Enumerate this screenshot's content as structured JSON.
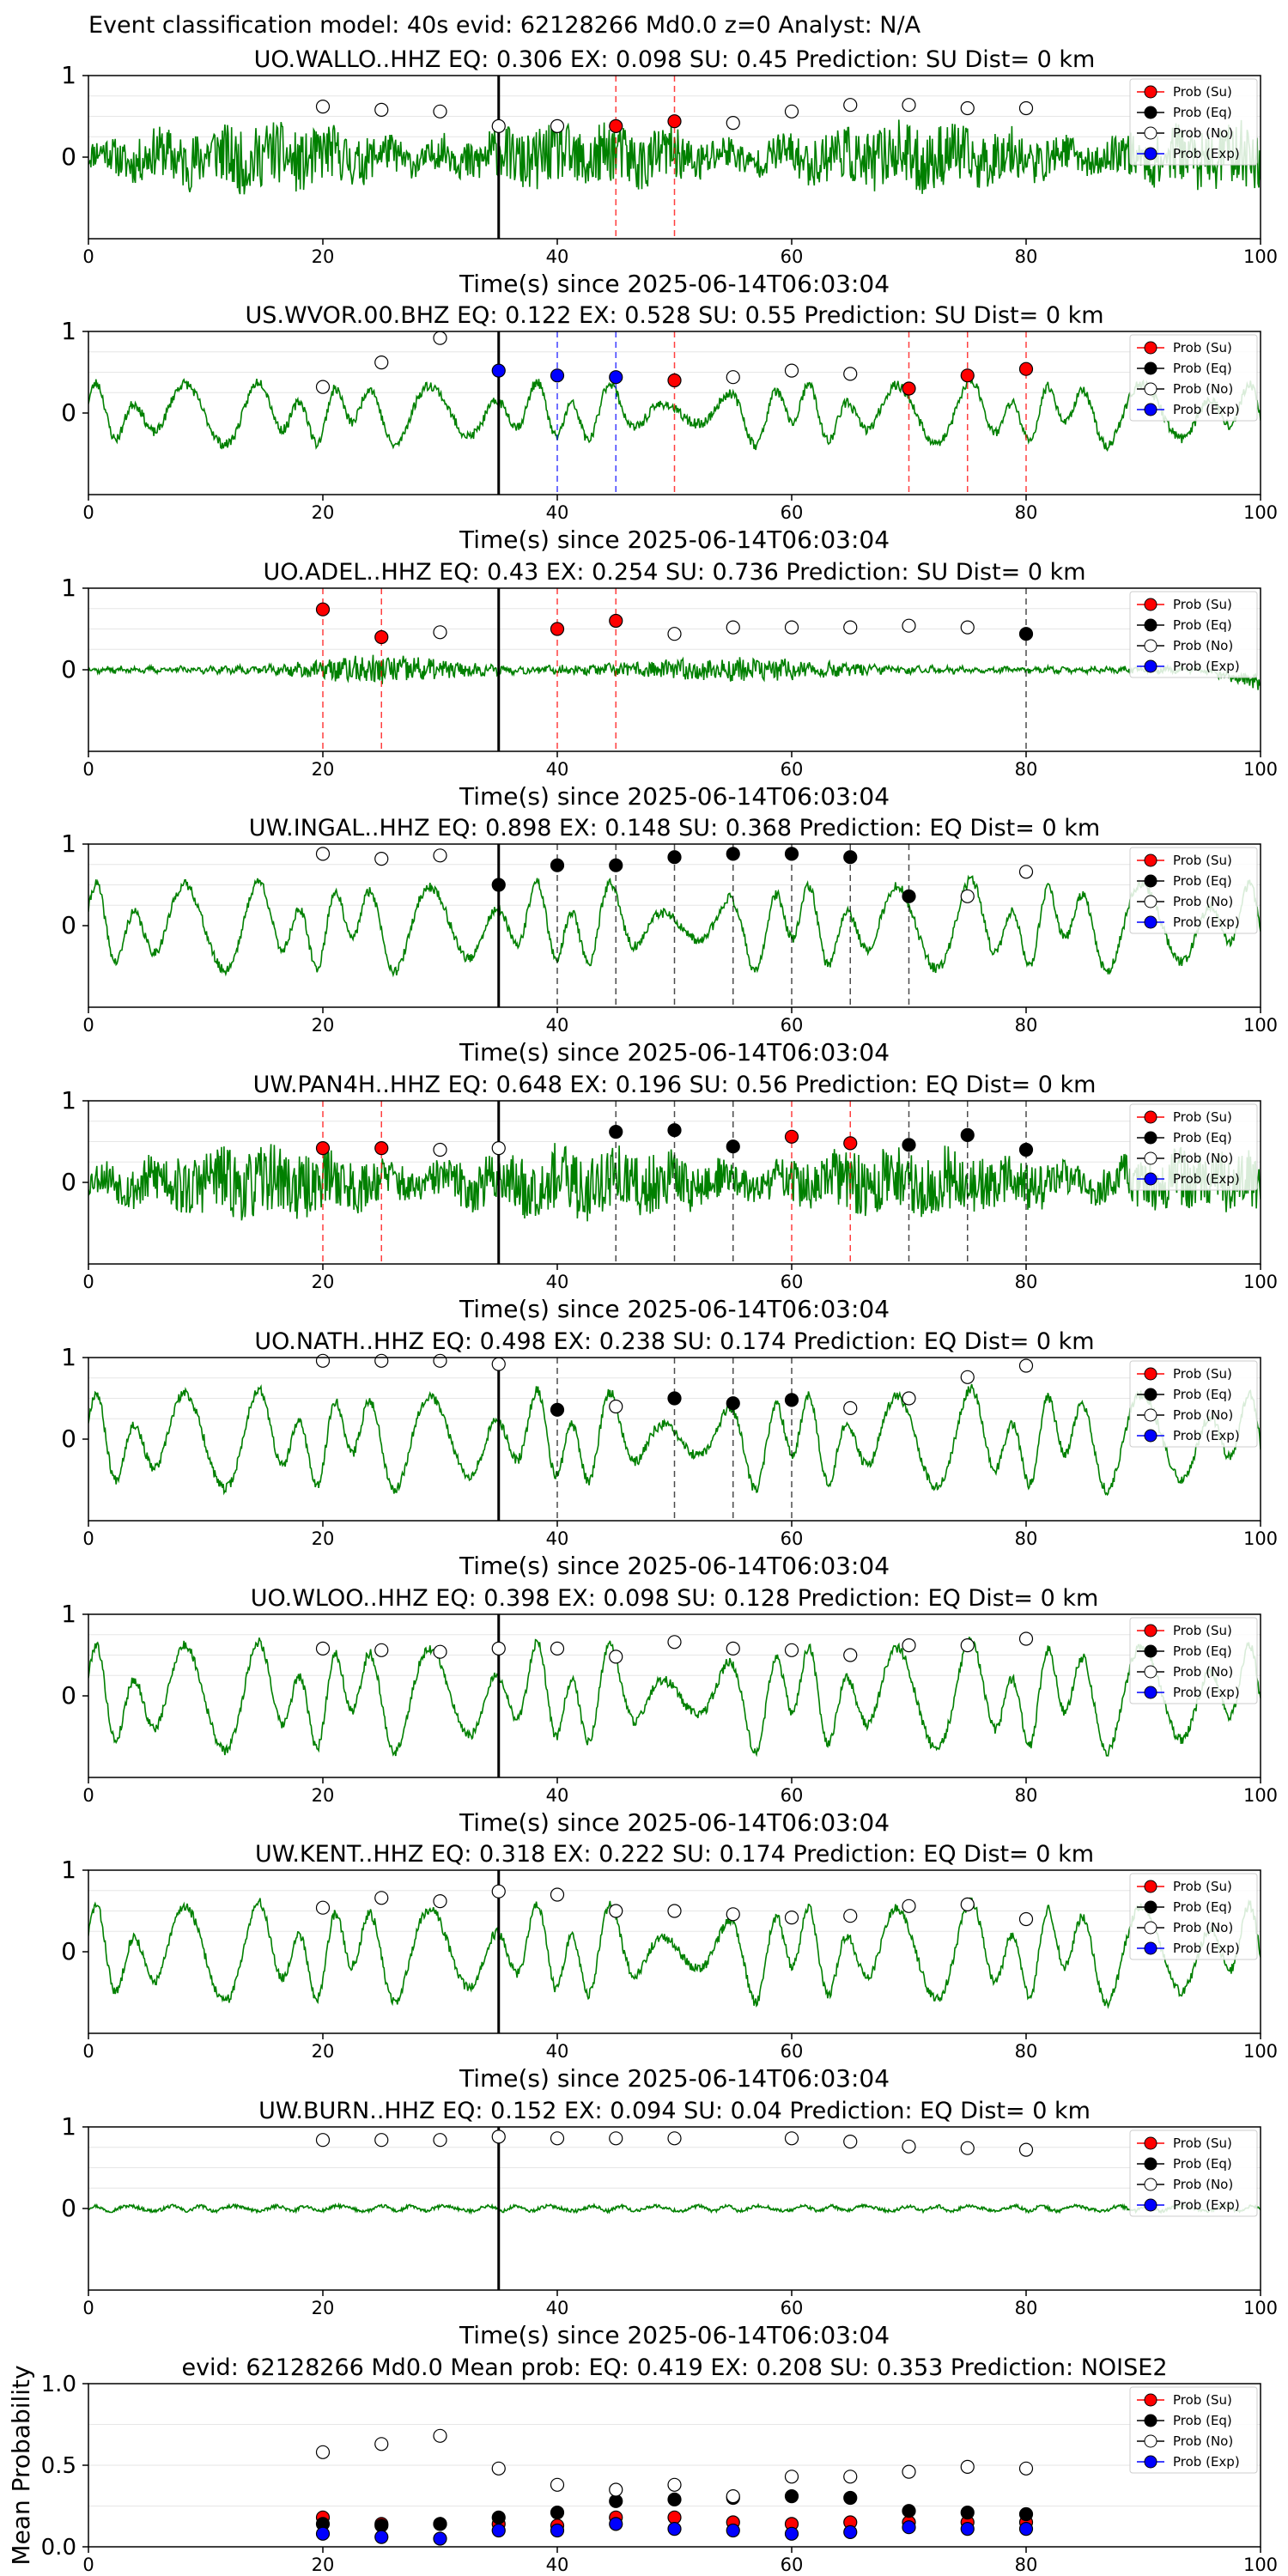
{
  "suptitle": "Event classification model: 40s evid: 62128266 Md0.0 z=0 Analyst: N/A",
  "legend_labels": [
    "Prob (Su)",
    "Prob (Eq)",
    "Prob (No)",
    "Prob (Exp)"
  ],
  "colors": {
    "waveform": "#008000",
    "su": "#ff0000",
    "eq": "#000000",
    "no": "#ffffff",
    "exp": "#0000ff",
    "su_line": "#ff0000",
    "eq_line": "#000000",
    "exp_line": "#0000ff"
  },
  "chart_data": [
    {
      "type": "scatter",
      "title": "UO.WALLO..HHZ   EQ: 0.306  EX: 0.098  SU: 0.45   Prediction: SU    Dist= 0 km",
      "xlabel": "Time(s) since 2025-06-14T06:03:04",
      "xlim": [
        0,
        100
      ],
      "x_ticks": [
        "0",
        "20",
        "40",
        "60",
        "80",
        "100"
      ],
      "y_ticks": [
        "0",
        "1"
      ],
      "ylim": [
        -1,
        1
      ],
      "waveform": {
        "amplitude": 0.28,
        "style": "noisy",
        "seed": 11
      },
      "vline": 35,
      "legend": "top-right",
      "points": [
        {
          "x": 20,
          "y": 0.62,
          "c": "no"
        },
        {
          "x": 25,
          "y": 0.58,
          "c": "no"
        },
        {
          "x": 30,
          "y": 0.56,
          "c": "no"
        },
        {
          "x": 35,
          "y": 0.38,
          "c": "no"
        },
        {
          "x": 40,
          "y": 0.38,
          "c": "no"
        },
        {
          "x": 45,
          "y": 0.38,
          "c": "su"
        },
        {
          "x": 50,
          "y": 0.44,
          "c": "su"
        },
        {
          "x": 55,
          "y": 0.42,
          "c": "no"
        },
        {
          "x": 60,
          "y": 0.56,
          "c": "no"
        },
        {
          "x": 65,
          "y": 0.64,
          "c": "no"
        },
        {
          "x": 70,
          "y": 0.64,
          "c": "no"
        },
        {
          "x": 75,
          "y": 0.6,
          "c": "no"
        },
        {
          "x": 80,
          "y": 0.6,
          "c": "no"
        }
      ],
      "marker_lines": [
        {
          "x": 45,
          "c": "su"
        },
        {
          "x": 50,
          "c": "su"
        }
      ]
    },
    {
      "type": "scatter",
      "title": "US.WVOR.00.BHZ   EQ: 0.122  EX: 0.528  SU: 0.55   Prediction: SU    Dist= 0 km",
      "xlabel": "Time(s) since 2025-06-14T06:03:04",
      "xlim": [
        0,
        100
      ],
      "x_ticks": [
        "0",
        "20",
        "40",
        "60",
        "80",
        "100"
      ],
      "y_ticks": [
        "0",
        "1"
      ],
      "ylim": [
        -1,
        1
      ],
      "waveform": {
        "amplitude": 0.32,
        "style": "wavy",
        "seed": 23
      },
      "vline": 35,
      "legend": "top-right",
      "points": [
        {
          "x": 20,
          "y": 0.32,
          "c": "no"
        },
        {
          "x": 25,
          "y": 0.62,
          "c": "no"
        },
        {
          "x": 30,
          "y": 0.92,
          "c": "no"
        },
        {
          "x": 35,
          "y": 0.52,
          "c": "exp"
        },
        {
          "x": 40,
          "y": 0.46,
          "c": "exp"
        },
        {
          "x": 45,
          "y": 0.44,
          "c": "exp"
        },
        {
          "x": 50,
          "y": 0.4,
          "c": "su"
        },
        {
          "x": 55,
          "y": 0.44,
          "c": "no"
        },
        {
          "x": 60,
          "y": 0.52,
          "c": "no"
        },
        {
          "x": 65,
          "y": 0.48,
          "c": "no"
        },
        {
          "x": 70,
          "y": 0.3,
          "c": "su"
        },
        {
          "x": 75,
          "y": 0.46,
          "c": "su"
        },
        {
          "x": 80,
          "y": 0.54,
          "c": "su"
        }
      ],
      "marker_lines": [
        {
          "x": 40,
          "c": "exp"
        },
        {
          "x": 45,
          "c": "exp"
        },
        {
          "x": 50,
          "c": "su"
        },
        {
          "x": 70,
          "c": "su"
        },
        {
          "x": 75,
          "c": "su"
        },
        {
          "x": 80,
          "c": "su"
        }
      ]
    },
    {
      "type": "scatter",
      "title": "UO.ADEL..HHZ   EQ: 0.43  EX: 0.254  SU: 0.736   Prediction: SU    Dist= 0 km",
      "xlabel": "Time(s) since 2025-06-14T06:03:04",
      "xlim": [
        0,
        100
      ],
      "x_ticks": [
        "0",
        "20",
        "40",
        "60",
        "80",
        "100"
      ],
      "y_ticks": [
        "0",
        "1"
      ],
      "ylim": [
        -1,
        1
      ],
      "waveform": {
        "amplitude": 0.12,
        "style": "burst",
        "seed": 37
      },
      "vline": 35,
      "legend": "top-right",
      "points": [
        {
          "x": 20,
          "y": 0.74,
          "c": "su"
        },
        {
          "x": 25,
          "y": 0.4,
          "c": "su"
        },
        {
          "x": 30,
          "y": 0.46,
          "c": "no"
        },
        {
          "x": 40,
          "y": 0.5,
          "c": "su"
        },
        {
          "x": 45,
          "y": 0.6,
          "c": "su"
        },
        {
          "x": 50,
          "y": 0.44,
          "c": "no"
        },
        {
          "x": 55,
          "y": 0.52,
          "c": "no"
        },
        {
          "x": 60,
          "y": 0.52,
          "c": "no"
        },
        {
          "x": 65,
          "y": 0.52,
          "c": "no"
        },
        {
          "x": 70,
          "y": 0.54,
          "c": "no"
        },
        {
          "x": 75,
          "y": 0.52,
          "c": "no"
        },
        {
          "x": 80,
          "y": 0.44,
          "c": "eq"
        }
      ],
      "marker_lines": [
        {
          "x": 20,
          "c": "su"
        },
        {
          "x": 25,
          "c": "su"
        },
        {
          "x": 40,
          "c": "su"
        },
        {
          "x": 45,
          "c": "su"
        },
        {
          "x": 80,
          "c": "eq"
        }
      ]
    },
    {
      "type": "scatter",
      "title": "UW.INGAL..HHZ   EQ: 0.898  EX: 0.148  SU: 0.368   Prediction: EQ    Dist= 0 km",
      "xlabel": "Time(s) since 2025-06-14T06:03:04",
      "xlim": [
        0,
        100
      ],
      "x_ticks": [
        "0",
        "20",
        "40",
        "60",
        "80",
        "100"
      ],
      "y_ticks": [
        "0",
        "1"
      ],
      "ylim": [
        -1,
        1
      ],
      "waveform": {
        "amplitude": 0.45,
        "style": "wavy",
        "seed": 41
      },
      "vline": 35,
      "legend": "top-right",
      "points": [
        {
          "x": 20,
          "y": 0.88,
          "c": "no"
        },
        {
          "x": 25,
          "y": 0.82,
          "c": "no"
        },
        {
          "x": 30,
          "y": 0.86,
          "c": "no"
        },
        {
          "x": 35,
          "y": 0.5,
          "c": "eq"
        },
        {
          "x": 40,
          "y": 0.74,
          "c": "eq"
        },
        {
          "x": 45,
          "y": 0.74,
          "c": "eq"
        },
        {
          "x": 50,
          "y": 0.84,
          "c": "eq"
        },
        {
          "x": 55,
          "y": 0.88,
          "c": "eq"
        },
        {
          "x": 60,
          "y": 0.88,
          "c": "eq"
        },
        {
          "x": 65,
          "y": 0.84,
          "c": "eq"
        },
        {
          "x": 70,
          "y": 0.36,
          "c": "eq"
        },
        {
          "x": 75,
          "y": 0.36,
          "c": "no"
        },
        {
          "x": 80,
          "y": 0.66,
          "c": "no"
        }
      ],
      "marker_lines": [
        {
          "x": 40,
          "c": "eq"
        },
        {
          "x": 45,
          "c": "eq"
        },
        {
          "x": 50,
          "c": "eq"
        },
        {
          "x": 55,
          "c": "eq"
        },
        {
          "x": 60,
          "c": "eq"
        },
        {
          "x": 65,
          "c": "eq"
        },
        {
          "x": 70,
          "c": "eq"
        }
      ]
    },
    {
      "type": "scatter",
      "title": "UW.PAN4H..HHZ   EQ: 0.648  EX: 0.196  SU: 0.56   Prediction: EQ    Dist= 0 km",
      "xlabel": "Time(s) since 2025-06-14T06:03:04",
      "xlim": [
        0,
        100
      ],
      "x_ticks": [
        "0",
        "20",
        "40",
        "60",
        "80",
        "100"
      ],
      "y_ticks": [
        "0",
        "1"
      ],
      "ylim": [
        -1,
        1
      ],
      "waveform": {
        "amplitude": 0.3,
        "style": "noisy",
        "seed": 53
      },
      "vline": 35,
      "legend": "top-right",
      "points": [
        {
          "x": 20,
          "y": 0.42,
          "c": "su"
        },
        {
          "x": 25,
          "y": 0.42,
          "c": "su"
        },
        {
          "x": 30,
          "y": 0.4,
          "c": "no"
        },
        {
          "x": 35,
          "y": 0.42,
          "c": "no"
        },
        {
          "x": 45,
          "y": 0.62,
          "c": "eq"
        },
        {
          "x": 50,
          "y": 0.64,
          "c": "eq"
        },
        {
          "x": 55,
          "y": 0.44,
          "c": "eq"
        },
        {
          "x": 60,
          "y": 0.56,
          "c": "su"
        },
        {
          "x": 65,
          "y": 0.48,
          "c": "su"
        },
        {
          "x": 70,
          "y": 0.46,
          "c": "eq"
        },
        {
          "x": 75,
          "y": 0.58,
          "c": "eq"
        },
        {
          "x": 80,
          "y": 0.4,
          "c": "eq"
        }
      ],
      "marker_lines": [
        {
          "x": 20,
          "c": "su"
        },
        {
          "x": 25,
          "c": "su"
        },
        {
          "x": 45,
          "c": "eq"
        },
        {
          "x": 50,
          "c": "eq"
        },
        {
          "x": 55,
          "c": "eq"
        },
        {
          "x": 60,
          "c": "su"
        },
        {
          "x": 65,
          "c": "su"
        },
        {
          "x": 70,
          "c": "eq"
        },
        {
          "x": 75,
          "c": "eq"
        },
        {
          "x": 80,
          "c": "eq"
        }
      ]
    },
    {
      "type": "scatter",
      "title": "UO.NATH..HHZ   EQ: 0.498  EX: 0.238  SU: 0.174   Prediction: EQ    Dist= 0 km",
      "xlabel": "Time(s) since 2025-06-14T06:03:04",
      "xlim": [
        0,
        100
      ],
      "x_ticks": [
        "0",
        "20",
        "40",
        "60",
        "80",
        "100"
      ],
      "y_ticks": [
        "0",
        "1"
      ],
      "ylim": [
        -1,
        1
      ],
      "waveform": {
        "amplitude": 0.5,
        "style": "wavy",
        "seed": 67
      },
      "vline": 35,
      "legend": "top-right",
      "points": [
        {
          "x": 20,
          "y": 0.96,
          "c": "no"
        },
        {
          "x": 25,
          "y": 0.96,
          "c": "no"
        },
        {
          "x": 30,
          "y": 0.96,
          "c": "no"
        },
        {
          "x": 35,
          "y": 0.92,
          "c": "no"
        },
        {
          "x": 40,
          "y": 0.36,
          "c": "eq"
        },
        {
          "x": 45,
          "y": 0.4,
          "c": "no"
        },
        {
          "x": 50,
          "y": 0.5,
          "c": "eq"
        },
        {
          "x": 55,
          "y": 0.44,
          "c": "eq"
        },
        {
          "x": 60,
          "y": 0.48,
          "c": "eq"
        },
        {
          "x": 65,
          "y": 0.38,
          "c": "no"
        },
        {
          "x": 70,
          "y": 0.5,
          "c": "no"
        },
        {
          "x": 75,
          "y": 0.76,
          "c": "no"
        },
        {
          "x": 80,
          "y": 0.9,
          "c": "no"
        }
      ],
      "marker_lines": [
        {
          "x": 40,
          "c": "eq"
        },
        {
          "x": 50,
          "c": "eq"
        },
        {
          "x": 55,
          "c": "eq"
        },
        {
          "x": 60,
          "c": "eq"
        }
      ]
    },
    {
      "type": "scatter",
      "title": "UO.WLOO..HHZ   EQ: 0.398  EX: 0.098  SU: 0.128   Prediction: EQ    Dist= 0 km",
      "xlabel": "Time(s) since 2025-06-14T06:03:04",
      "xlim": [
        0,
        100
      ],
      "x_ticks": [
        "0",
        "20",
        "40",
        "60",
        "80",
        "100"
      ],
      "y_ticks": [
        "0",
        "1"
      ],
      "ylim": [
        -1,
        1
      ],
      "waveform": {
        "amplitude": 0.55,
        "style": "wavy",
        "seed": 79
      },
      "vline": 35,
      "legend": "top-right",
      "points": [
        {
          "x": 20,
          "y": 0.58,
          "c": "no"
        },
        {
          "x": 25,
          "y": 0.56,
          "c": "no"
        },
        {
          "x": 30,
          "y": 0.54,
          "c": "no"
        },
        {
          "x": 35,
          "y": 0.58,
          "c": "no"
        },
        {
          "x": 40,
          "y": 0.58,
          "c": "no"
        },
        {
          "x": 45,
          "y": 0.48,
          "c": "no"
        },
        {
          "x": 50,
          "y": 0.66,
          "c": "no"
        },
        {
          "x": 55,
          "y": 0.58,
          "c": "no"
        },
        {
          "x": 60,
          "y": 0.56,
          "c": "no"
        },
        {
          "x": 65,
          "y": 0.5,
          "c": "no"
        },
        {
          "x": 70,
          "y": 0.62,
          "c": "no"
        },
        {
          "x": 75,
          "y": 0.62,
          "c": "no"
        },
        {
          "x": 80,
          "y": 0.7,
          "c": "no"
        }
      ],
      "marker_lines": []
    },
    {
      "type": "scatter",
      "title": "UW.KENT..HHZ   EQ: 0.318  EX: 0.222  SU: 0.174   Prediction: EQ    Dist= 0 km",
      "xlabel": "Time(s) since 2025-06-14T06:03:04",
      "xlim": [
        0,
        100
      ],
      "x_ticks": [
        "0",
        "20",
        "40",
        "60",
        "80",
        "100"
      ],
      "y_ticks": [
        "0",
        "1"
      ],
      "ylim": [
        -1,
        1
      ],
      "waveform": {
        "amplitude": 0.5,
        "style": "wavy",
        "seed": 83
      },
      "vline": 35,
      "legend": "top-right",
      "points": [
        {
          "x": 20,
          "y": 0.54,
          "c": "no"
        },
        {
          "x": 25,
          "y": 0.66,
          "c": "no"
        },
        {
          "x": 30,
          "y": 0.62,
          "c": "no"
        },
        {
          "x": 35,
          "y": 0.74,
          "c": "no"
        },
        {
          "x": 40,
          "y": 0.7,
          "c": "no"
        },
        {
          "x": 45,
          "y": 0.5,
          "c": "no"
        },
        {
          "x": 50,
          "y": 0.5,
          "c": "no"
        },
        {
          "x": 55,
          "y": 0.46,
          "c": "no"
        },
        {
          "x": 60,
          "y": 0.42,
          "c": "no"
        },
        {
          "x": 65,
          "y": 0.44,
          "c": "no"
        },
        {
          "x": 70,
          "y": 0.56,
          "c": "no"
        },
        {
          "x": 75,
          "y": 0.58,
          "c": "no"
        },
        {
          "x": 80,
          "y": 0.4,
          "c": "no"
        }
      ],
      "marker_lines": []
    },
    {
      "type": "scatter",
      "title": "UW.BURN..HHZ   EQ: 0.152  EX: 0.094  SU: 0.04   Prediction: EQ    Dist= 0 km",
      "xlabel": "Time(s) since 2025-06-14T06:03:04",
      "xlim": [
        0,
        100
      ],
      "x_ticks": [
        "0",
        "20",
        "40",
        "60",
        "80",
        "100"
      ],
      "y_ticks": [
        "0",
        "1"
      ],
      "ylim": [
        -1,
        1
      ],
      "waveform": {
        "amplitude": 0.05,
        "style": "flat",
        "seed": 97
      },
      "vline": 35,
      "legend": "top-right",
      "points": [
        {
          "x": 20,
          "y": 0.84,
          "c": "no"
        },
        {
          "x": 25,
          "y": 0.84,
          "c": "no"
        },
        {
          "x": 30,
          "y": 0.84,
          "c": "no"
        },
        {
          "x": 35,
          "y": 0.88,
          "c": "no"
        },
        {
          "x": 40,
          "y": 0.86,
          "c": "no"
        },
        {
          "x": 45,
          "y": 0.86,
          "c": "no"
        },
        {
          "x": 50,
          "y": 0.86,
          "c": "no"
        },
        {
          "x": 60,
          "y": 0.86,
          "c": "no"
        },
        {
          "x": 65,
          "y": 0.82,
          "c": "no"
        },
        {
          "x": 70,
          "y": 0.76,
          "c": "no"
        },
        {
          "x": 75,
          "y": 0.74,
          "c": "no"
        },
        {
          "x": 80,
          "y": 0.72,
          "c": "no"
        }
      ],
      "marker_lines": []
    },
    {
      "type": "scatter",
      "title": "evid: 62128266  Md0.0   Mean prob:    EQ: 0.419  EX: 0.208  SU: 0.353   Prediction: NOISE2",
      "ylabel": "Mean Probability",
      "xlim": [
        0,
        100
      ],
      "x_ticks": [
        "0",
        "20",
        "40",
        "60",
        "80",
        "100"
      ],
      "y_ticks": [
        "0.0",
        "0.5",
        "1.0"
      ],
      "ylim": [
        0,
        1
      ],
      "legend": "top-right",
      "x": [
        20,
        25,
        30,
        35,
        40,
        45,
        50,
        55,
        60,
        65,
        70,
        75,
        80
      ],
      "series": [
        {
          "c": "su",
          "values": [
            0.18,
            0.14,
            0.14,
            0.14,
            0.13,
            0.18,
            0.18,
            0.15,
            0.14,
            0.15,
            0.15,
            0.15,
            0.15
          ]
        },
        {
          "c": "eq",
          "values": [
            0.14,
            0.13,
            0.14,
            0.18,
            0.21,
            0.28,
            0.29,
            0.3,
            0.31,
            0.3,
            0.22,
            0.21,
            0.2
          ]
        },
        {
          "c": "no",
          "values": [
            0.58,
            0.63,
            0.68,
            0.48,
            0.38,
            0.35,
            0.38,
            0.31,
            0.43,
            0.43,
            0.46,
            0.49,
            0.48
          ]
        },
        {
          "c": "exp",
          "values": [
            0.08,
            0.06,
            0.05,
            0.1,
            0.1,
            0.14,
            0.11,
            0.1,
            0.08,
            0.09,
            0.12,
            0.11,
            0.11
          ]
        }
      ]
    }
  ]
}
